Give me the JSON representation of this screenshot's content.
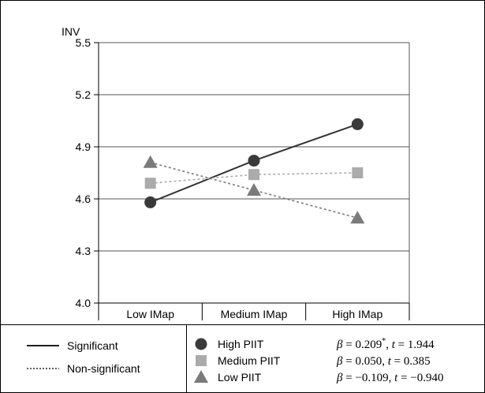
{
  "chart_data": {
    "type": "line",
    "ylabel": "INV",
    "ylim": [
      4.0,
      5.5
    ],
    "yticks": [
      "4.0",
      "4.3",
      "4.6",
      "4.9",
      "5.2",
      "5.5"
    ],
    "ytick_values": [
      4.0,
      4.3,
      4.6,
      4.9,
      5.2,
      5.5
    ],
    "categories": [
      "Low IMap",
      "Medium IMap",
      "High IMap"
    ],
    "grid": "horizontal",
    "series": [
      {
        "name": "High PIIT",
        "values": [
          4.58,
          4.82,
          5.03
        ],
        "line": "Significant",
        "color": "#3a3a3a",
        "marker": "circle",
        "stat_beta": "0.209",
        "stat_star": "*",
        "stat_t": "1.944"
      },
      {
        "name": "Medium PIIT",
        "values": [
          4.69,
          4.74,
          4.75
        ],
        "line": "Non-significant",
        "color": "#ababab",
        "marker": "square",
        "stat_beta": "0.050",
        "stat_star": "",
        "stat_t": "0.385"
      },
      {
        "name": "Low PIIT",
        "values": [
          4.81,
          4.65,
          4.49
        ],
        "line": "Non-significant",
        "color": "#7b7b7b",
        "marker": "triangle",
        "stat_beta": "−0.109",
        "stat_star": "",
        "stat_t": "−0.940"
      }
    ],
    "line_legend": [
      {
        "label": "Significant",
        "style": "solid"
      },
      {
        "label": "Non-significant",
        "style": "dotted"
      }
    ],
    "stat_symbols": {
      "beta": "β",
      "t": "t"
    }
  }
}
